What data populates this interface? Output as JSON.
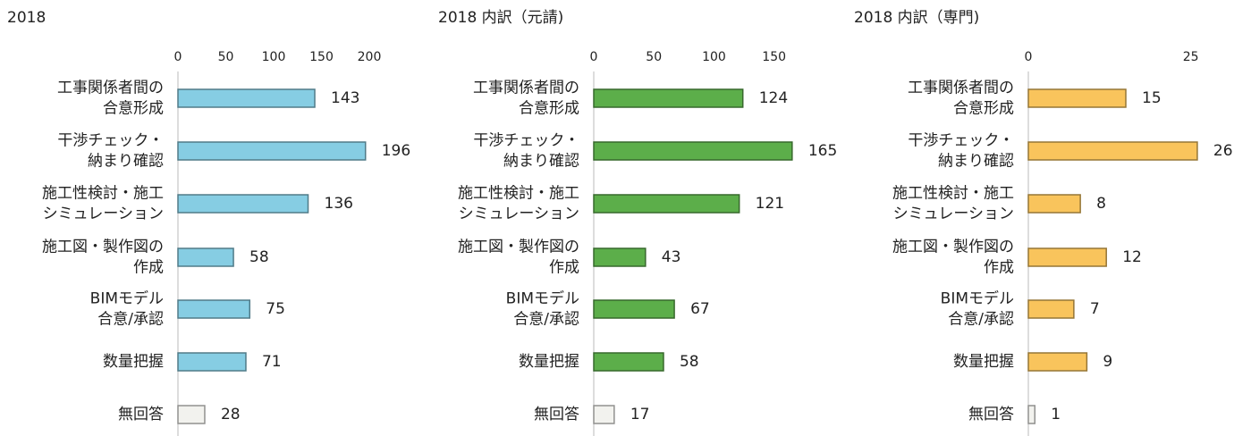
{
  "chart_data": [
    {
      "type": "bar",
      "orientation": "horizontal",
      "title": "2018",
      "categories": [
        [
          "工事関係者間の",
          "合意形成"
        ],
        [
          "干渉チェック・",
          "納まり確認"
        ],
        [
          "施工性検討・施工",
          "シミュレーション"
        ],
        [
          "施工図・製作図の",
          "作成"
        ],
        [
          "BIMモデル",
          "合意/承認"
        ],
        [
          "数量把握"
        ],
        [
          "無回答"
        ]
      ],
      "values": [
        143,
        196,
        136,
        58,
        75,
        71,
        28
      ],
      "colors": [
        "#86cde3",
        "#86cde3",
        "#86cde3",
        "#86cde3",
        "#86cde3",
        "#86cde3",
        "#f2f2ee"
      ],
      "xlim": [
        0,
        200
      ],
      "xticks": [
        0,
        50,
        100,
        150,
        200
      ]
    },
    {
      "type": "bar",
      "orientation": "horizontal",
      "title": "2018 内訳（元請)",
      "categories": [
        [
          "工事関係者間の",
          "合意形成"
        ],
        [
          "干渉チェック・",
          "納まり確認"
        ],
        [
          "施工性検討・施工",
          "シミュレーション"
        ],
        [
          "施工図・製作図の",
          "作成"
        ],
        [
          "BIMモデル",
          "合意/承認"
        ],
        [
          "数量把握"
        ],
        [
          "無回答"
        ]
      ],
      "values": [
        124,
        165,
        121,
        43,
        67,
        58,
        17
      ],
      "colors": [
        "#5cae4a",
        "#5cae4a",
        "#5cae4a",
        "#5cae4a",
        "#5cae4a",
        "#5cae4a",
        "#f2f2ee"
      ],
      "xlim": [
        0,
        180
      ],
      "xticks": [
        0,
        50,
        100,
        150
      ]
    },
    {
      "type": "bar",
      "orientation": "horizontal",
      "title": "2018 内訳（専門)",
      "categories": [
        [
          "工事関係者間の",
          "合意形成"
        ],
        [
          "干渉チェック・",
          "納まり確認"
        ],
        [
          "施工性検討・施工",
          "シミュレーション"
        ],
        [
          "施工図・製作図の",
          "作成"
        ],
        [
          "BIMモデル",
          "合意/承認"
        ],
        [
          "数量把握"
        ],
        [
          "無回答"
        ]
      ],
      "values": [
        15,
        26,
        8,
        12,
        7,
        9,
        1
      ],
      "colors": [
        "#f9c45c",
        "#f9c45c",
        "#f9c45c",
        "#f9c45c",
        "#f9c45c",
        "#f9c45c",
        "#f2f2ee"
      ],
      "xlim": [
        0,
        30
      ],
      "xticks": [
        0,
        25
      ]
    }
  ]
}
